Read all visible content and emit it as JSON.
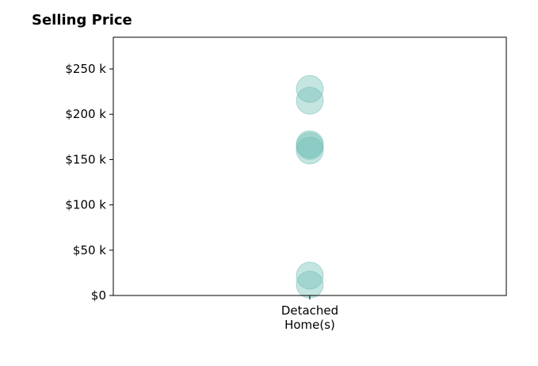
{
  "chart_data": {
    "type": "scatter",
    "title": "Selling Price",
    "categories": [
      "Detached\nHome(s)"
    ],
    "y_ticks": [
      {
        "value": 0,
        "label": "$0"
      },
      {
        "value": 50000,
        "label": "$50 k"
      },
      {
        "value": 100000,
        "label": "$100 k"
      },
      {
        "value": 150000,
        "label": "$150 k"
      },
      {
        "value": 200000,
        "label": "$200 k"
      },
      {
        "value": 250000,
        "label": "$250 k"
      }
    ],
    "ylim": [
      0,
      285000
    ],
    "series": [
      {
        "category": "Detached\nHome(s)",
        "values": [
          228000,
          215000,
          167000,
          165000,
          160000,
          22000,
          12000
        ]
      }
    ],
    "marker_color": "#6dbdb4",
    "grid": false,
    "xlabel": "",
    "ylabel": ""
  }
}
